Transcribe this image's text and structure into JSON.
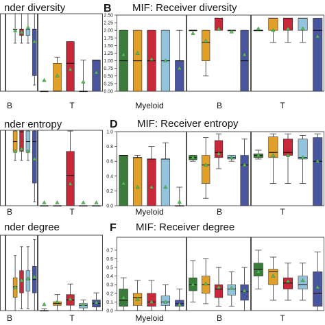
{
  "colors": {
    "series": [
      "#3a7d3a",
      "#e0a02a",
      "#c8283a",
      "#93c4dc",
      "#4a55a0"
    ],
    "median": "#111111",
    "mean_marker": "#5cb85c",
    "frame": "#222222"
  },
  "chart_data": [
    {
      "id": "A",
      "type": "box",
      "letter": "",
      "title": "nder diversity",
      "groups": [
        "B",
        "T"
      ],
      "ylim": [
        0,
        2.5
      ],
      "yticks": [],
      "boxes": [
        [
          null,
          null,
          null,
          null,
          null
        ],
        [
          null,
          [
            1.55,
            2.0,
            2.0,
            2.0,
            2.5
          ],
          [
            1.55,
            1.8,
            2.0,
            2.0,
            2.5
          ],
          [
            1.55,
            1.8,
            2.0,
            2.0,
            2.5
          ],
          [
            0.2,
            0.5,
            2.0,
            2.0,
            2.5
          ]
        ],
        [
          [
            0.0,
            0.0,
            0.0,
            0.0,
            0.0
          ],
          [
            0.0,
            0.0,
            0.0,
            0.9,
            1.1
          ],
          [
            0.0,
            0.0,
            0.9,
            1.6,
            1.6
          ],
          [
            0.0,
            0.0,
            0.0,
            0.0,
            1.0
          ],
          [
            0.0,
            0.0,
            1.0,
            1.0,
            1.0
          ]
        ]
      ],
      "means": [
        [
          null,
          null,
          null,
          null,
          null
        ],
        [
          null,
          1.95,
          1.9,
          2.05,
          1.6
        ],
        [
          0.35,
          0.5,
          0.7,
          0.3,
          0.6
        ]
      ]
    },
    {
      "id": "B",
      "type": "box",
      "letter": "B",
      "title": "MIF: Receiver diversity",
      "groups": [
        "Myeloid",
        "B",
        "T"
      ],
      "ylim": [
        0,
        2.5
      ],
      "yticks": [
        0.0,
        0.25,
        0.5,
        0.75,
        1.0,
        1.25,
        1.5,
        1.75,
        2.0,
        2.25,
        2.5
      ],
      "boxes": [
        [
          [
            0.0,
            0.0,
            1.0,
            2.0,
            2.0
          ],
          [
            0.0,
            0.0,
            1.0,
            2.0,
            2.0
          ],
          [
            0.0,
            0.0,
            1.0,
            2.0,
            2.0
          ],
          [
            0.0,
            0.0,
            1.0,
            2.0,
            2.0
          ],
          [
            0.0,
            0.0,
            1.0,
            1.0,
            2.0
          ]
        ],
        [
          [
            2.0,
            2.0,
            2.0,
            2.0,
            2.0
          ],
          [
            0.5,
            1.0,
            1.6,
            2.0,
            2.0
          ],
          [
            2.0,
            2.0,
            2.4,
            2.4,
            2.4
          ],
          [
            2.0,
            2.0,
            2.0,
            2.0,
            2.0
          ],
          [
            0.0,
            0.0,
            1.0,
            2.0,
            2.0
          ]
        ],
        [
          [
            2.0,
            2.0,
            2.0,
            2.0,
            2.0
          ],
          [
            1.6,
            2.0,
            2.4,
            2.4,
            2.4
          ],
          [
            1.6,
            2.0,
            2.4,
            2.4,
            2.4
          ],
          [
            1.6,
            2.0,
            2.4,
            2.4,
            2.4
          ],
          [
            0.0,
            0.0,
            2.0,
            2.4,
            2.4
          ]
        ]
      ],
      "means": [
        [
          1.2,
          1.25,
          1.05,
          1.0,
          0.75
        ],
        [
          1.9,
          1.65,
          2.05,
          1.95,
          1.2
        ],
        [
          2.05,
          2.0,
          2.05,
          2.05,
          1.8
        ]
      ]
    },
    {
      "id": "C",
      "type": "box",
      "letter": "",
      "title": "nder entropy",
      "groups": [
        "B",
        "T"
      ],
      "ylim": [
        0,
        1.0
      ],
      "yticks": [],
      "boxes": [
        [
          null,
          null,
          null,
          null,
          null
        ],
        [
          null,
          [
            0.6,
            0.72,
            0.85,
            0.99,
            1.0
          ],
          [
            0.6,
            0.72,
            0.98,
            1.0,
            1.0
          ],
          [
            0.6,
            0.72,
            0.85,
            0.99,
            1.0
          ],
          [
            0.05,
            0.3,
            0.85,
            0.99,
            1.0
          ]
        ],
        [
          [
            0.0,
            0.0,
            0.0,
            0.0,
            0.0
          ],
          [
            0.0,
            0.0,
            0.0,
            0.0,
            0.0
          ],
          [
            0.0,
            0.0,
            0.4,
            0.72,
            0.99
          ],
          [
            0.0,
            0.0,
            0.0,
            0.0,
            0.0
          ],
          [
            0.0,
            0.0,
            0.0,
            0.0,
            0.0
          ]
        ]
      ],
      "means": [
        [
          null,
          null,
          null,
          null,
          null
        ],
        [
          null,
          0.72,
          0.75,
          0.72,
          0.62
        ],
        [
          0.04,
          0.04,
          0.29,
          0.04,
          0.04
        ]
      ]
    },
    {
      "id": "D",
      "type": "box",
      "letter": "D",
      "title": "MIF: Receiver entropy",
      "groups": [
        "Myeloid",
        "B",
        "T"
      ],
      "ylim": [
        0,
        1.0
      ],
      "yticks": [
        0.0,
        0.2,
        0.4,
        0.6,
        0.8,
        1.0
      ],
      "boxes": [
        [
          [
            0.0,
            0.0,
            0.68,
            0.68,
            0.68
          ],
          [
            0.0,
            0.0,
            0.65,
            0.65,
            0.68
          ],
          [
            0.0,
            0.0,
            0.63,
            0.63,
            0.8
          ],
          [
            0.0,
            0.0,
            0.63,
            0.63,
            0.85
          ],
          [
            0.0,
            0.0,
            0.0,
            0.0,
            0.25
          ]
        ],
        [
          [
            0.6,
            0.62,
            0.65,
            0.68,
            0.68
          ],
          [
            0.1,
            0.3,
            0.55,
            0.68,
            0.92
          ],
          [
            0.5,
            0.65,
            0.72,
            0.88,
            0.97
          ],
          [
            0.6,
            0.63,
            0.65,
            0.68,
            0.68
          ],
          [
            0.0,
            0.0,
            0.55,
            0.68,
            0.9
          ]
        ],
        [
          [
            0.63,
            0.65,
            0.68,
            0.7,
            0.75
          ],
          [
            0.3,
            0.65,
            0.72,
            0.93,
            0.97
          ],
          [
            0.3,
            0.68,
            0.72,
            0.9,
            0.97
          ],
          [
            0.3,
            0.63,
            0.65,
            0.9,
            0.95
          ],
          [
            0.0,
            0.0,
            0.6,
            0.92,
            0.97
          ]
        ]
      ],
      "means": [
        [
          0.3,
          0.25,
          0.25,
          0.25,
          0.05
        ],
        [
          0.65,
          0.55,
          0.7,
          0.65,
          0.55
        ],
        [
          0.68,
          0.68,
          0.68,
          0.65,
          0.6
        ]
      ]
    },
    {
      "id": "E",
      "type": "box",
      "letter": "",
      "title": "nder degree",
      "groups": [
        "B",
        "T"
      ],
      "ylim": [
        0,
        0.85
      ],
      "yticks": [],
      "boxes": [
        [
          null,
          null,
          null,
          null,
          null
        ],
        [
          null,
          [
            0.0,
            0.15,
            0.27,
            0.37,
            0.62
          ],
          [
            0.02,
            0.2,
            0.33,
            0.45,
            0.72
          ],
          [
            0.02,
            0.22,
            0.35,
            0.45,
            0.72
          ],
          [
            0.0,
            0.2,
            0.35,
            0.5,
            0.8
          ]
        ],
        [
          [
            0.0,
            0.0,
            0.0,
            0.0,
            0.02
          ],
          [
            0.0,
            0.06,
            0.08,
            0.1,
            0.18
          ],
          [
            0.0,
            0.06,
            0.12,
            0.18,
            0.3
          ],
          [
            0.0,
            0.03,
            0.06,
            0.08,
            0.12
          ],
          [
            0.0,
            0.04,
            0.08,
            0.12,
            0.2
          ]
        ]
      ],
      "means": [
        [
          null,
          null,
          null,
          null,
          null
        ],
        [
          null,
          0.26,
          0.34,
          0.36,
          0.38
        ],
        [
          0.07,
          0.1,
          0.13,
          0.07,
          0.09
        ]
      ]
    },
    {
      "id": "F",
      "type": "box",
      "letter": "F",
      "title": "MIF: Receiver degree",
      "groups": [
        "Myeloid",
        "B",
        "T"
      ],
      "ylim": [
        0,
        0.85
      ],
      "yticks": [
        0.0,
        0.1,
        0.2,
        0.3,
        0.4,
        0.5,
        0.6,
        0.7
      ],
      "boxes": [
        [
          [
            0.0,
            0.05,
            0.12,
            0.25,
            0.38
          ],
          [
            0.0,
            0.06,
            0.15,
            0.2,
            0.35
          ],
          [
            0.0,
            0.05,
            0.1,
            0.2,
            0.35
          ],
          [
            0.0,
            0.06,
            0.1,
            0.17,
            0.3
          ],
          [
            0.0,
            0.05,
            0.08,
            0.12,
            0.25
          ]
        ],
        [
          [
            0.1,
            0.23,
            0.3,
            0.38,
            0.58
          ],
          [
            0.08,
            0.2,
            0.3,
            0.4,
            0.6
          ],
          [
            0.05,
            0.15,
            0.25,
            0.3,
            0.5
          ],
          [
            0.05,
            0.18,
            0.25,
            0.3,
            0.45
          ],
          [
            0.0,
            0.12,
            0.22,
            0.3,
            0.5
          ]
        ],
        [
          [
            0.25,
            0.4,
            0.48,
            0.55,
            0.7
          ],
          [
            0.12,
            0.3,
            0.45,
            0.48,
            0.62
          ],
          [
            0.12,
            0.25,
            0.32,
            0.38,
            0.55
          ],
          [
            0.12,
            0.25,
            0.3,
            0.4,
            0.55
          ],
          [
            0.0,
            0.05,
            0.2,
            0.45,
            0.68
          ]
        ]
      ],
      "means": [
        [
          0.15,
          0.13,
          0.1,
          0.1,
          0.07
        ],
        [
          0.3,
          0.31,
          0.27,
          0.26,
          0.23
        ],
        [
          0.45,
          0.4,
          0.34,
          0.35,
          0.27
        ]
      ]
    }
  ]
}
